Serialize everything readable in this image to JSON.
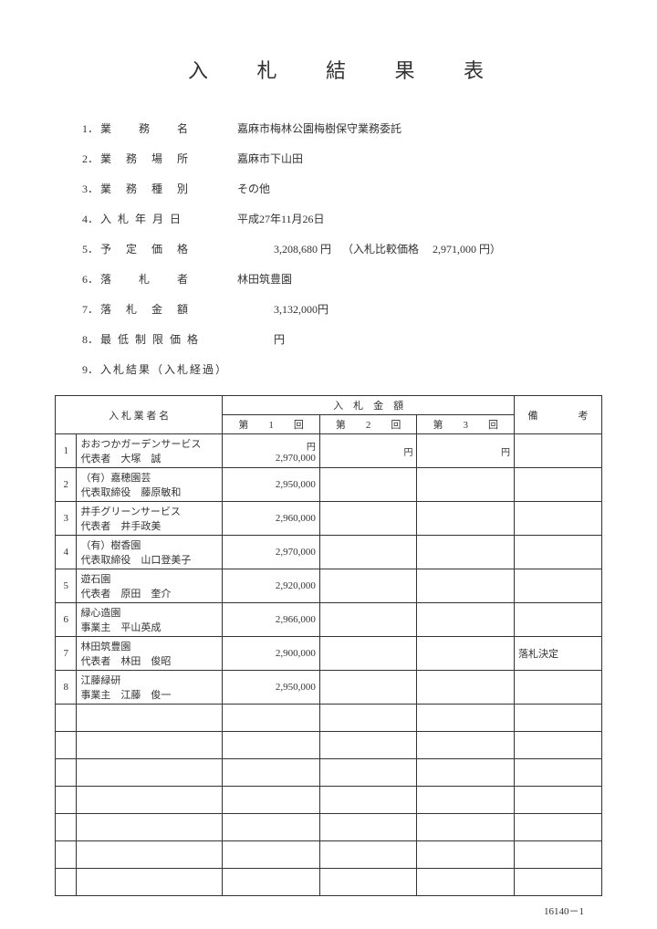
{
  "title": "入 札 結 果 表",
  "info": [
    {
      "num": "1．",
      "label": "業　　務　　名",
      "value": "嘉麻市梅林公園梅樹保守業務委託"
    },
    {
      "num": "2．",
      "label": "業　務　場　所",
      "value": "嘉麻市下山田"
    },
    {
      "num": "3．",
      "label": "業　務　種　別",
      "value": "その他"
    },
    {
      "num": "4．",
      "label": "入 札 年 月 日",
      "value": "平成27年11月26日"
    },
    {
      "num": "5．",
      "label": "予　定　価　格",
      "value": "",
      "price": "3,208,680 円",
      "extra": "（入札比較価格　  2,971,000 円）"
    },
    {
      "num": "6．",
      "label": "落　　札　　者",
      "value": "林田筑豊園"
    },
    {
      "num": "7．",
      "label": "落　札　金　額",
      "value": "",
      "price": "3,132,000円"
    },
    {
      "num": "8．",
      "label": "最 低 制 限 価 格",
      "value": "",
      "price": "円"
    },
    {
      "num": "9．",
      "label": "入札結果（入札経過）",
      "value": ""
    }
  ],
  "table": {
    "headers": {
      "name": "入 札 業 者 名",
      "amount": "入　札　金　額",
      "round1": "第　　1　　回",
      "round2": "第　　2　　回",
      "round3": "第　　3　　回",
      "remarks": "備　　　　考",
      "yen": "円"
    },
    "rows": [
      {
        "num": "1",
        "name1": "おおつかガーデンサービス",
        "name2": "代表者　大塚　誠",
        "amt1": "2,970,000",
        "amt2": "",
        "amt3": "",
        "remarks": ""
      },
      {
        "num": "2",
        "name1": "（有）嘉穂園芸",
        "name2": "代表取締役　藤原敏和",
        "amt1": "2,950,000",
        "amt2": "",
        "amt3": "",
        "remarks": ""
      },
      {
        "num": "3",
        "name1": "井手グリーンサービス",
        "name2": "代表者　井手政美",
        "amt1": "2,960,000",
        "amt2": "",
        "amt3": "",
        "remarks": ""
      },
      {
        "num": "4",
        "name1": "（有）樹香園",
        "name2": "代表取締役　山口登美子",
        "amt1": "2,970,000",
        "amt2": "",
        "amt3": "",
        "remarks": ""
      },
      {
        "num": "5",
        "name1": "遊石園",
        "name2": "代表者　原田　奎介",
        "amt1": "2,920,000",
        "amt2": "",
        "amt3": "",
        "remarks": ""
      },
      {
        "num": "6",
        "name1": "緑心造園",
        "name2": "事業主　平山英成",
        "amt1": "2,966,000",
        "amt2": "",
        "amt3": "",
        "remarks": ""
      },
      {
        "num": "7",
        "name1": "林田筑豊園",
        "name2": "代表者　林田　俊昭",
        "amt1": "2,900,000",
        "amt2": "",
        "amt3": "",
        "remarks": "落札決定"
      },
      {
        "num": "8",
        "name1": "江藤緑研",
        "name2": "事業主　江藤　俊一",
        "amt1": "2,950,000",
        "amt2": "",
        "amt3": "",
        "remarks": ""
      }
    ],
    "empty_rows": 7
  },
  "footer": "16140－1"
}
